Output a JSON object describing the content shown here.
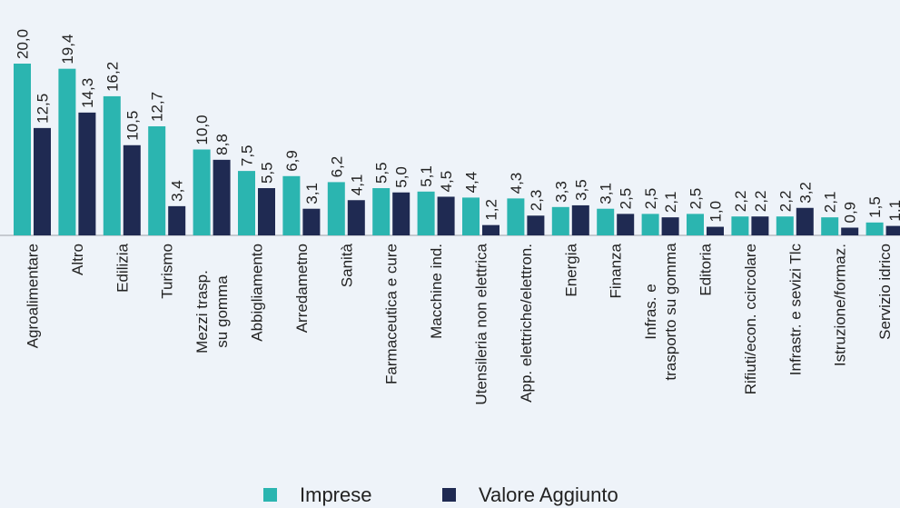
{
  "chart_data": {
    "type": "bar",
    "categories": [
      "Agroalimentare",
      "Altro",
      "Edilizia",
      "Turismo",
      "Mezzi trasp.\nsu gomma",
      "Abbigliamento",
      "Arredametno",
      "Sanità",
      "Farmaceutica e cure",
      "Macchine ind.",
      "Utensileria non elettrica",
      "App. elettriche/elettron.",
      "Energia",
      "Finanza",
      "Infras. e\ntrasporto su gomma",
      "Editoria",
      "Rifiuti/econ. ccircolare",
      "Infrastr. e sevizi Tlc",
      "Istruzione/formaz.",
      "Servizio idrico"
    ],
    "series": [
      {
        "name": "Imprese",
        "color": "#2bb5b0",
        "values": [
          20.0,
          19.4,
          16.2,
          12.7,
          10.0,
          7.5,
          6.9,
          6.2,
          5.5,
          5.1,
          4.4,
          4.3,
          3.3,
          3.1,
          2.5,
          2.5,
          2.2,
          2.2,
          2.1,
          1.5
        ],
        "value_labels": [
          "20,0",
          "19,4",
          "16,2",
          "12,7",
          "10,0",
          "7,5",
          "6,9",
          "6,2",
          "5,5",
          "5,1",
          "4,4",
          "4,3",
          "3,3",
          "3,1",
          "2,5",
          "2,5",
          "2,2",
          "2,2",
          "2,1",
          "1,5"
        ]
      },
      {
        "name": "Valore Aggiunto",
        "color": "#1f2a52",
        "values": [
          12.5,
          14.3,
          10.5,
          3.4,
          8.8,
          5.5,
          3.1,
          4.1,
          5.0,
          4.5,
          1.2,
          2.3,
          3.5,
          2.5,
          2.1,
          1.0,
          2.2,
          3.2,
          0.9,
          1.1
        ],
        "value_labels": [
          "12,5",
          "14,3",
          "10,5",
          "3,4",
          "8,8",
          "5,5",
          "3,1",
          "4,1",
          "5,0",
          "4,5",
          "1,2",
          "2,3",
          "3,5",
          "2,5",
          "2,1",
          "1,0",
          "2,2",
          "3,2",
          "0,9",
          "1,1"
        ]
      }
    ],
    "legend": "bottom"
  }
}
